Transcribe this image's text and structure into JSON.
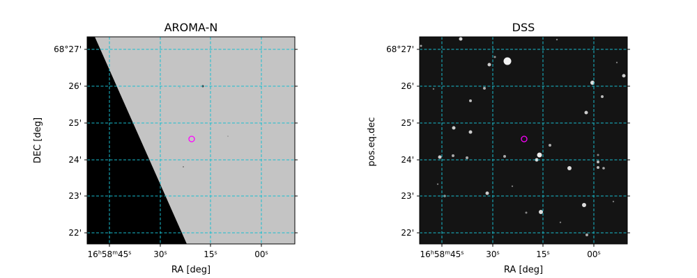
{
  "panels": [
    {
      "title": "AROMA-N",
      "xlabel": "RA [deg]",
      "ylabel": "DEC [deg]",
      "image": "sky-image-with-masked-region",
      "xticks": [
        {
          "h": "16",
          "m": "58",
          "s": "45"
        },
        {
          "s": "30"
        },
        {
          "s": "15"
        },
        {
          "s": "00"
        }
      ],
      "yticks": [
        "68°27'",
        "26'",
        "25'",
        "24'",
        "23'",
        "22'"
      ]
    },
    {
      "title": "DSS",
      "xlabel": "RA [deg]",
      "ylabel": "pos.eq.dec",
      "image": "star-field",
      "xticks": [
        {
          "h": "16",
          "m": "58",
          "s": "45"
        },
        {
          "s": "30"
        },
        {
          "s": "15"
        },
        {
          "s": "00"
        }
      ],
      "yticks": [
        "68°27'",
        "26'",
        "25'",
        "24'",
        "23'",
        "22'"
      ]
    }
  ],
  "colors": {
    "grid": "#17becf",
    "marker": "#ff00ff",
    "sky_grey": "#c4c4c4",
    "masked": "#000000",
    "dss_background": "#141414"
  },
  "marker_shape": "circle"
}
